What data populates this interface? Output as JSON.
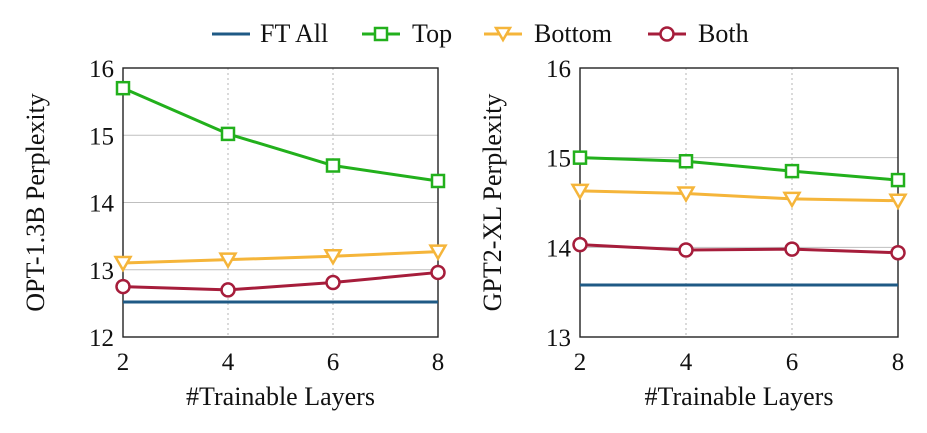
{
  "legend": {
    "items": [
      {
        "label": "FT All",
        "color": "#1f5a85",
        "marker": "line"
      },
      {
        "label": "Top",
        "color": "#22b01c",
        "marker": "square"
      },
      {
        "label": "Bottom",
        "color": "#f5b53a",
        "marker": "triangle-down"
      },
      {
        "label": "Both",
        "color": "#a61d3b",
        "marker": "circle"
      }
    ],
    "placement": "top-center"
  },
  "chart_data": [
    {
      "type": "line",
      "xlabel": "#Trainable Layers",
      "ylabel": "OPT-1.3B Perplexity",
      "x": [
        2,
        4,
        6,
        8
      ],
      "xticks": [
        "2",
        "4",
        "6",
        "8"
      ],
      "yticks": [
        "12",
        "13",
        "14",
        "15",
        "16"
      ],
      "ylim": [
        12,
        16
      ],
      "grid": "vertical dotted at x ticks, horizontal solid at y ticks",
      "series": [
        {
          "name": "FT All",
          "values": [
            12.52,
            12.52,
            12.52,
            12.52
          ]
        },
        {
          "name": "Top",
          "values": [
            15.7,
            15.02,
            14.55,
            14.32
          ]
        },
        {
          "name": "Bottom",
          "values": [
            13.1,
            13.15,
            13.2,
            13.27
          ]
        },
        {
          "name": "Both",
          "values": [
            12.75,
            12.7,
            12.81,
            12.96
          ]
        }
      ]
    },
    {
      "type": "line",
      "xlabel": "#Trainable Layers",
      "ylabel": "GPT2-XL Perplexity",
      "x": [
        2,
        4,
        6,
        8
      ],
      "xticks": [
        "2",
        "4",
        "6",
        "8"
      ],
      "yticks": [
        "13",
        "14",
        "15",
        "16"
      ],
      "ylim": [
        13,
        16
      ],
      "grid": "vertical dotted at x ticks, horizontal solid at y ticks",
      "series": [
        {
          "name": "FT All",
          "values": [
            13.58,
            13.58,
            13.58,
            13.58
          ]
        },
        {
          "name": "Top",
          "values": [
            15.0,
            14.96,
            14.85,
            14.75
          ]
        },
        {
          "name": "Bottom",
          "values": [
            14.63,
            14.6,
            14.54,
            14.52
          ]
        },
        {
          "name": "Both",
          "values": [
            14.03,
            13.97,
            13.98,
            13.94
          ]
        }
      ]
    }
  ]
}
